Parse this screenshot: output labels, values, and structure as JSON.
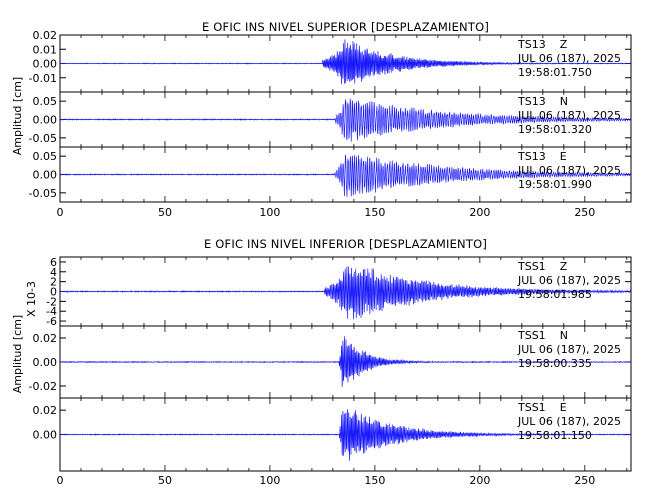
{
  "chart_data": [
    {
      "type": "line",
      "title": "E OFIC INS NIVEL SUPERIOR [DESPLAZAMIENTO]",
      "ylabel": "Amplitud [cm]",
      "xlim": [
        0,
        272
      ],
      "xticks": [
        "0",
        "50",
        "100",
        "150",
        "200",
        "250"
      ],
      "series": [
        {
          "name": "TS13 Z",
          "station": "TS13",
          "component": "Z",
          "date": "JUL 06 (187), 2025",
          "time": "19:58:01.750",
          "ylim": [
            -0.02,
            0.02
          ],
          "yticks": [
            "0.02",
            "0.01",
            "0.00",
            "-0.01"
          ],
          "ytick_values": [
            0.02,
            0.01,
            0.0,
            -0.01
          ],
          "signal": {
            "noise": 0.0002,
            "onset": 125.0,
            "peak_time": 136.0,
            "peak_amp": 0.019,
            "decay": 22,
            "freq": 1.6,
            "rise": 3
          }
        },
        {
          "name": "TS13 N",
          "station": "TS13",
          "component": "N",
          "date": "JUL 06 (187), 2025",
          "time": "19:58:01.320",
          "ylim": [
            -0.075,
            0.075
          ],
          "yticks": [
            "0.05",
            "0.00",
            "-0.05"
          ],
          "ytick_values": [
            0.05,
            0.0,
            -0.05
          ],
          "signal": {
            "noise": 0.001,
            "onset": 131.0,
            "peak_time": 136.0,
            "peak_amp": 0.068,
            "decay": 45,
            "freq": 0.95,
            "rise": 2
          }
        },
        {
          "name": "TS13 E",
          "station": "TS13",
          "component": "E",
          "date": "JUL 06 (187), 2025",
          "time": "19:58:01.990",
          "ylim": [
            -0.075,
            0.075
          ],
          "yticks": [
            "0.05",
            "0.00",
            "-0.05"
          ],
          "ytick_values": [
            0.05,
            0.0,
            -0.05
          ],
          "signal": {
            "noise": 0.001,
            "onset": 131.0,
            "peak_time": 136.0,
            "peak_amp": 0.068,
            "decay": 45,
            "freq": 0.95,
            "rise": 2
          }
        }
      ]
    },
    {
      "type": "line",
      "title": "E OFIC INS NIVEL INFERIOR [DESPLAZAMIENTO]",
      "ylabel": "Amplitud [cm]",
      "xlim": [
        0,
        272
      ],
      "xticks": [
        "0",
        "50",
        "100",
        "150",
        "200",
        "250"
      ],
      "series": [
        {
          "name": "TSS1 Z",
          "station": "TSS1",
          "component": "Z",
          "date": "JUL 06 (187), 2025",
          "time": "19:58:01.985",
          "ylim": [
            -7,
            7
          ],
          "yticks": [
            "6",
            "4",
            "2",
            "0",
            "-2",
            "-4",
            "-6"
          ],
          "ytick_values": [
            6,
            4,
            2,
            0,
            -2,
            -4,
            -6
          ],
          "yscale_label": "X 10-3",
          "signal": {
            "noise": 0.08,
            "onset": 126.0,
            "peak_time": 138.0,
            "peak_amp": 6.5,
            "decay": 35,
            "freq": 1.4,
            "rise": 6
          }
        },
        {
          "name": "TSS1 N",
          "station": "TSS1",
          "component": "N",
          "date": "JUL 06 (187), 2025",
          "time": "19:58:00.335",
          "ylim": [
            -0.03,
            0.03
          ],
          "yticks": [
            "0.02",
            "0.00",
            "-0.02"
          ],
          "ytick_values": [
            0.02,
            0.0,
            -0.02
          ],
          "signal": {
            "noise": 0.0003,
            "onset": 133.0,
            "peak_time": 134.5,
            "peak_amp": 0.026,
            "decay": 10,
            "freq": 1.5,
            "rise": 1
          }
        },
        {
          "name": "TSS1 E",
          "station": "TSS1",
          "component": "E",
          "date": "JUL 06 (187), 2025",
          "time": "19:58:01.150",
          "ylim": [
            -0.03,
            0.03
          ],
          "yticks": [
            "0.02",
            "0.00"
          ],
          "ytick_values": [
            0.02,
            0.0
          ],
          "signal": {
            "noise": 0.0003,
            "onset": 133.0,
            "peak_time": 134.5,
            "peak_amp": 0.027,
            "decay": 22,
            "freq": 1.5,
            "rise": 1
          }
        }
      ]
    }
  ],
  "colors": {
    "trace": "#1a1aff",
    "axis": "#000000",
    "background": "#ffffff"
  }
}
